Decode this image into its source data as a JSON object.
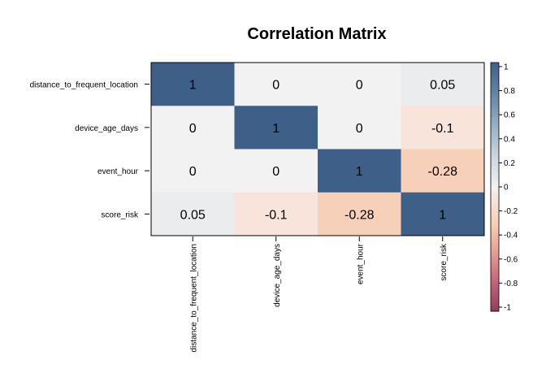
{
  "chart_data": {
    "type": "heatmap",
    "title": "Correlation Matrix",
    "variables": [
      "distance_to_frequent_location",
      "device_age_days",
      "event_hour",
      "score_risk"
    ],
    "matrix": [
      [
        1,
        0,
        0,
        0.05
      ],
      [
        0,
        1,
        0,
        -0.1
      ],
      [
        0,
        0,
        1,
        -0.28
      ],
      [
        0.05,
        -0.1,
        -0.28,
        1
      ]
    ],
    "labels": [
      [
        "1",
        "0",
        "0",
        "0.05"
      ],
      [
        "0",
        "1",
        "0",
        "-0.1"
      ],
      [
        "0",
        "0",
        "1",
        "-0.28"
      ],
      [
        "0.05",
        "-0.1",
        "-0.28",
        "1"
      ]
    ],
    "color_range": [
      -1,
      1
    ],
    "colorbar_ticks": [
      "1",
      "0.8",
      "0.6",
      "0.4",
      "0.2",
      "0",
      "-0.2",
      "-0.4",
      "-0.6",
      "-0.8",
      "-1"
    ],
    "colors": {
      "negative": "#67001F",
      "neutral": "#F2F2F2",
      "positive": "#053061"
    },
    "legend_position": "right"
  }
}
